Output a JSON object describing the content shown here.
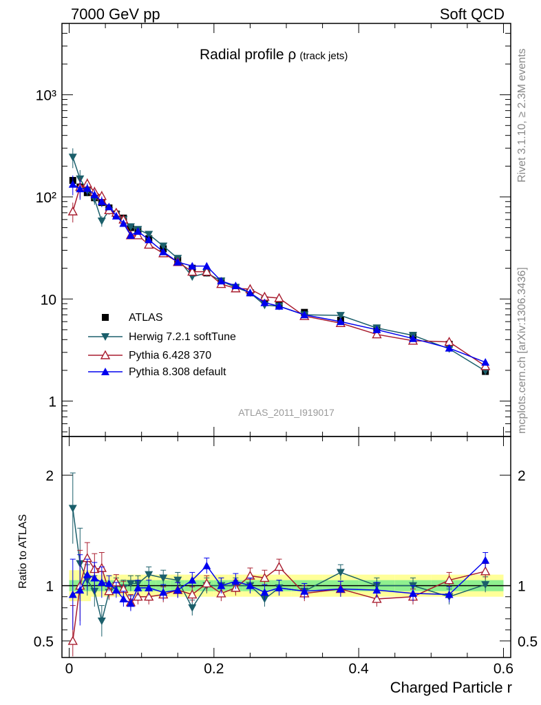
{
  "header": {
    "left": "7000 GeV pp",
    "right": "Soft QCD"
  },
  "plot": {
    "title_main": "Radial profile ",
    "title_rho": "ρ",
    "title_sub": "(track jets)"
  },
  "side_labels": {
    "rivet": "Rivet 3.1.10, ≥ 2.3M events",
    "mcplots": "mcplots.cern.ch [arXiv:1306.3436]"
  },
  "watermark": "ATLAS_2011_I919017",
  "colors": {
    "ATLAS": "#000000",
    "Herwig": "#1b5f6b",
    "Pythia6": "#a81c2e",
    "Pythia8": "#0000ee",
    "band_inner": "#8ff08f",
    "band_outer": "#ffff99"
  },
  "chart_data": [
    {
      "type": "scatter",
      "log_y": true,
      "ylim": [
        0.45,
        5000
      ],
      "xlim": [
        -0.01,
        0.61
      ],
      "y_tick_labels": [
        "1",
        "10",
        "10²",
        "10³"
      ],
      "legend": {
        "placement": "bottom-left",
        "entries": [
          "ATLAS",
          "Herwig 7.2.1 softTune",
          "Pythia 6.428 370",
          "Pythia 8.308 default"
        ]
      },
      "x": [
        0.005,
        0.015,
        0.025,
        0.035,
        0.045,
        0.055,
        0.065,
        0.075,
        0.085,
        0.095,
        0.11,
        0.13,
        0.15,
        0.17,
        0.19,
        0.21,
        0.23,
        0.25,
        0.27,
        0.29,
        0.325,
        0.375,
        0.425,
        0.475,
        0.525,
        0.575
      ],
      "series": [
        {
          "name": "ATLAS",
          "marker": "square",
          "values": [
            145,
            125,
            110,
            98,
            88,
            78,
            68,
            62,
            50,
            47,
            39,
            31,
            24,
            20,
            18,
            15,
            13,
            11.5,
            9.8,
            8.7,
            7.4,
            6.2,
            5.2,
            4.4,
            3.6,
            1.95
          ]
        },
        {
          "name": "Herwig 7.2.1 softTune",
          "marker": "triangle-down",
          "values": [
            245,
            150,
            115,
            95,
            58,
            73,
            67,
            60,
            51,
            48,
            43,
            33,
            25,
            16.5,
            18,
            15,
            13,
            11.5,
            8.7,
            8.5,
            7,
            6.9,
            5.2,
            4.4,
            3.25,
            1.97
          ]
        },
        {
          "name": "Pythia 6.428 370",
          "marker": "triangle-up-open",
          "values": [
            72,
            125,
            135,
            112,
            102,
            74,
            70,
            60,
            42,
            42,
            34,
            28,
            23,
            18.5,
            18.5,
            14,
            12.7,
            12.5,
            10.5,
            10.2,
            6.8,
            5.8,
            4.5,
            3.9,
            3.8,
            2.2
          ]
        },
        {
          "name": "Pythia 8.308 default",
          "marker": "triangle-up",
          "values": [
            133,
            120,
            121,
            105,
            90,
            80,
            65,
            55,
            42,
            46,
            38,
            29,
            23,
            21,
            21,
            15,
            13.5,
            11.5,
            9.2,
            8.5,
            7,
            6,
            5,
            4.1,
            3.3,
            2.4
          ]
        }
      ]
    },
    {
      "type": "scatter",
      "ylabel": "Ratio to ATLAS",
      "ylim": [
        0.35,
        2.35
      ],
      "xlim": [
        -0.01,
        0.61
      ],
      "x_tick_labels": [
        "0",
        "0.2",
        "0.4",
        "0.6"
      ],
      "y_tick_labels": [
        "0.5",
        "1",
        "2"
      ],
      "xlabel": "Charged Particle r",
      "x": [
        0.005,
        0.015,
        0.025,
        0.035,
        0.045,
        0.055,
        0.065,
        0.075,
        0.085,
        0.095,
        0.11,
        0.13,
        0.15,
        0.17,
        0.19,
        0.21,
        0.23,
        0.25,
        0.27,
        0.29,
        0.325,
        0.375,
        0.425,
        0.475,
        0.525,
        0.575
      ],
      "series": [
        {
          "name": "Herwig 7.2.1 softTune",
          "values": [
            1.7,
            1.2,
            1.05,
            0.95,
            0.68,
            0.94,
            1.0,
            0.98,
            1.02,
            1.02,
            1.1,
            1.07,
            1.05,
            0.8,
            1.0,
            1.0,
            1.0,
            1.0,
            0.88,
            0.98,
            0.95,
            1.12,
            1.0,
            1.0,
            0.9,
            1.01
          ]
        },
        {
          "name": "Pythia 6.428 370",
          "values": [
            0.5,
            1.0,
            1.25,
            1.15,
            1.16,
            0.95,
            1.03,
            0.97,
            0.85,
            0.9,
            0.9,
            0.92,
            0.96,
            0.92,
            1.02,
            0.93,
            0.98,
            1.09,
            1.07,
            1.17,
            0.93,
            0.97,
            0.88,
            0.9,
            1.05,
            1.13
          ]
        },
        {
          "name": "Pythia 8.308 default",
          "values": [
            0.92,
            0.96,
            1.1,
            1.07,
            1.03,
            1.02,
            0.96,
            0.88,
            0.84,
            0.98,
            0.98,
            0.94,
            0.96,
            1.05,
            1.18,
            1.0,
            1.04,
            1.0,
            0.94,
            0.98,
            0.95,
            0.97,
            0.96,
            0.93,
            0.92,
            1.23
          ]
        }
      ]
    }
  ]
}
